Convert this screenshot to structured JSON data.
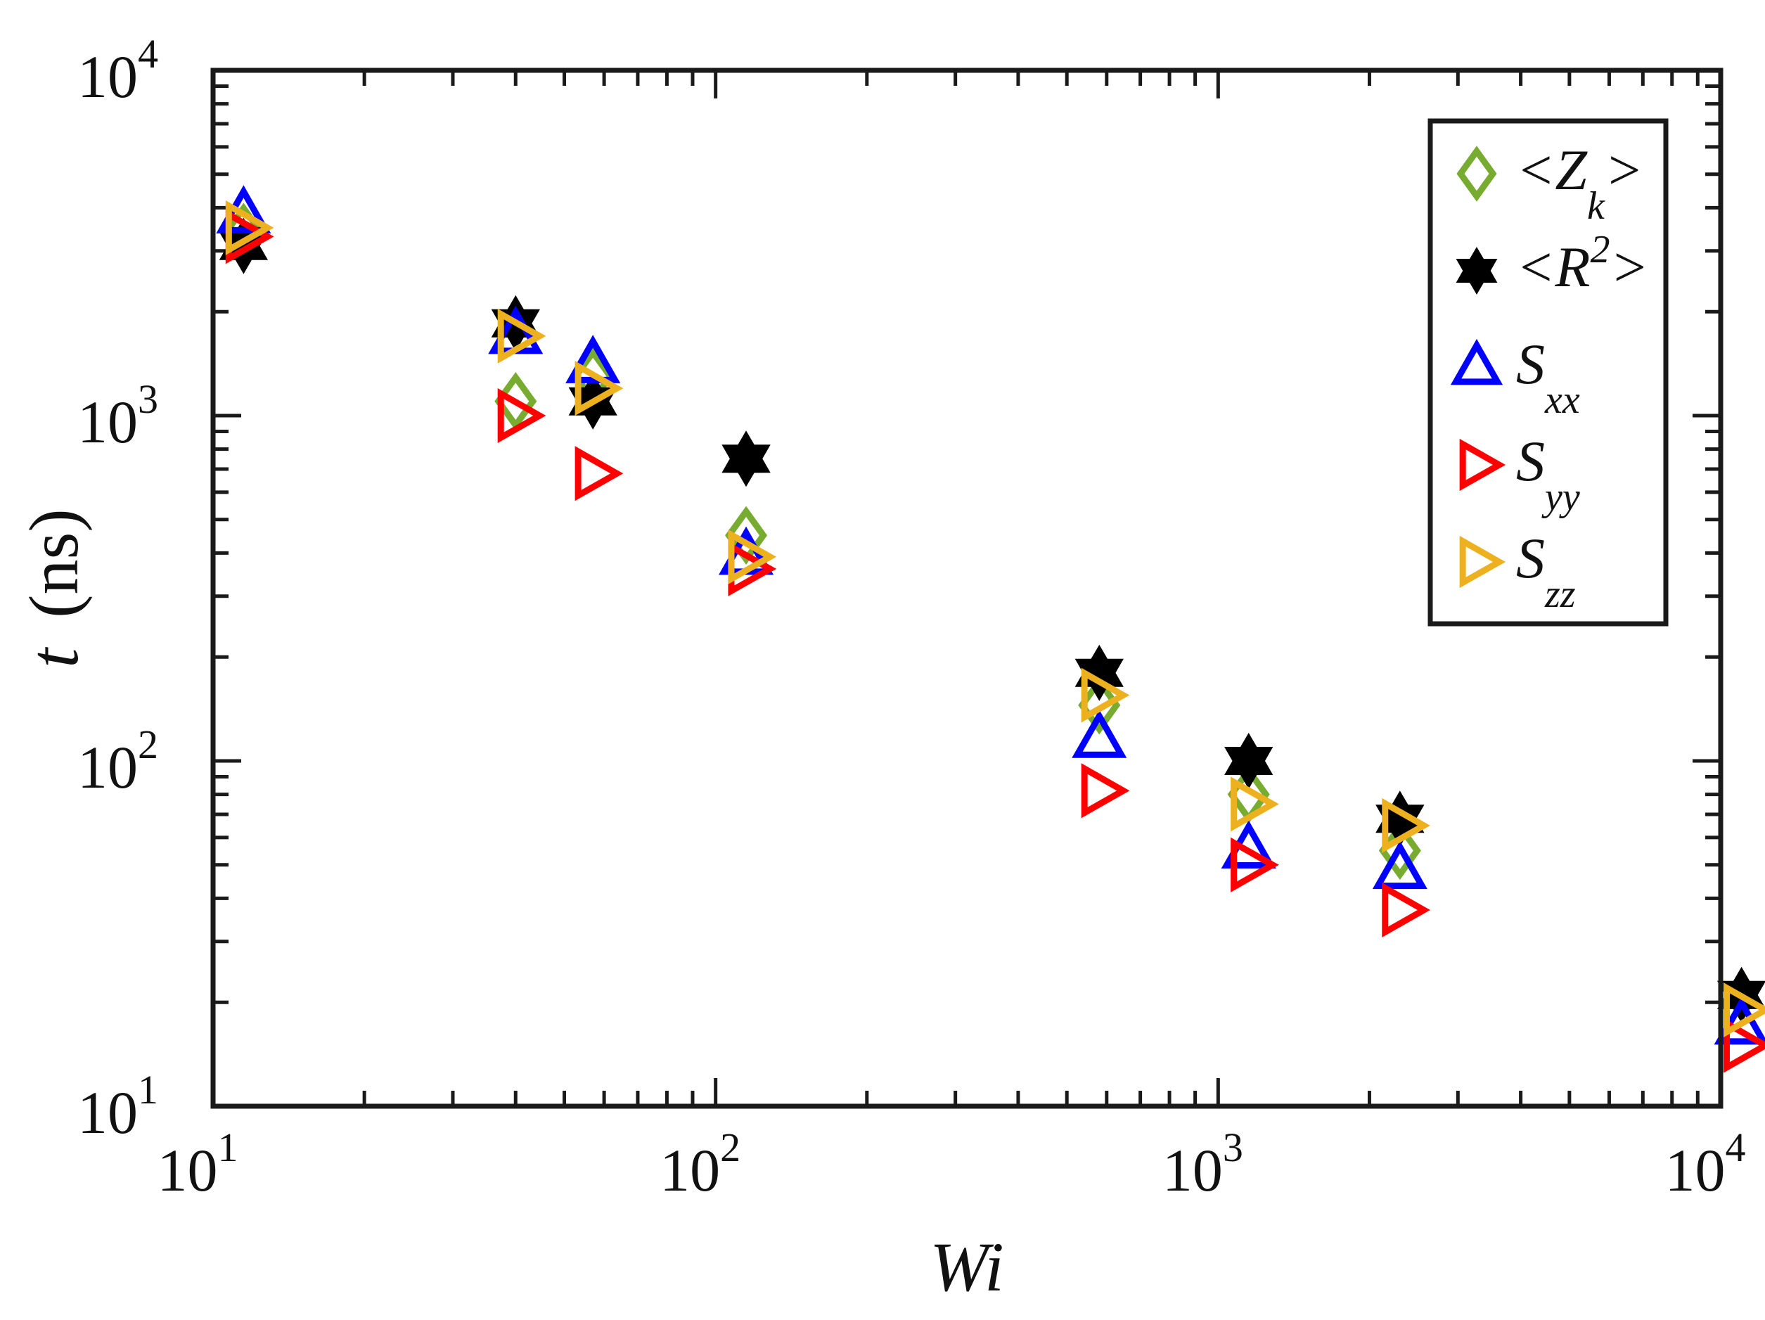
{
  "chart_data": {
    "type": "scatter",
    "xlabel": "Wi",
    "ylabel_var": "t",
    "ylabel_unit": "(ns)",
    "x_scale": "log",
    "y_scale": "log",
    "xlim": [
      10,
      10000
    ],
    "ylim": [
      10,
      10000
    ],
    "grid": false,
    "legend_position": "top-right",
    "x_ticks": [
      {
        "base": "10",
        "exp": "1",
        "value": 10
      },
      {
        "base": "10",
        "exp": "2",
        "value": 100
      },
      {
        "base": "10",
        "exp": "3",
        "value": 1000
      },
      {
        "base": "10",
        "exp": "4",
        "value": 10000
      }
    ],
    "y_ticks": [
      {
        "base": "10",
        "exp": "1",
        "value": 10
      },
      {
        "base": "10",
        "exp": "2",
        "value": 100
      },
      {
        "base": "10",
        "exp": "3",
        "value": 1000
      },
      {
        "base": "10",
        "exp": "4",
        "value": 10000
      }
    ],
    "series": [
      {
        "key": "Zk",
        "label_parts": [
          "<Z",
          "k",
          ">"
        ],
        "label_format": "subscript",
        "marker": "diamond-open",
        "color": "#77ac30",
        "x": [
          11.5,
          40,
          57,
          115,
          580,
          1150,
          2300
        ],
        "y": [
          3400,
          1100,
          1300,
          450,
          145,
          80,
          55
        ]
      },
      {
        "key": "R2",
        "label_parts": [
          "<R",
          "2",
          ">"
        ],
        "label_format": "superscript",
        "marker": "hexagram-filled",
        "color": "#000000",
        "x": [
          11.5,
          40,
          57,
          115,
          580,
          1150,
          2300,
          11000
        ],
        "y": [
          3100,
          1850,
          1100,
          750,
          180,
          100,
          68,
          21
        ]
      },
      {
        "key": "Sxx",
        "label_parts": [
          "S",
          "xx",
          ""
        ],
        "label_format": "subscript",
        "marker": "triangle-up-open",
        "color": "#0000ff",
        "x": [
          11.5,
          40,
          57,
          115,
          580,
          1150,
          2300,
          11000
        ],
        "y": [
          3800,
          1700,
          1400,
          390,
          115,
          55,
          48,
          17
        ]
      },
      {
        "key": "Syy",
        "label_parts": [
          "S",
          "yy",
          ""
        ],
        "label_format": "subscript",
        "marker": "triangle-right-open",
        "color": "#ff0000",
        "x": [
          11.5,
          40,
          57,
          115,
          580,
          1150,
          2300,
          11000
        ],
        "y": [
          3300,
          1000,
          680,
          360,
          82,
          50,
          37,
          15
        ]
      },
      {
        "key": "Szz",
        "label_parts": [
          "S",
          "zz",
          ""
        ],
        "label_format": "subscript",
        "marker": "triangle-right-open",
        "color": "#edb120",
        "x": [
          11.5,
          40,
          57,
          115,
          580,
          1150,
          2300,
          11000
        ],
        "y": [
          3500,
          1700,
          1200,
          390,
          155,
          75,
          65,
          19
        ]
      }
    ]
  }
}
